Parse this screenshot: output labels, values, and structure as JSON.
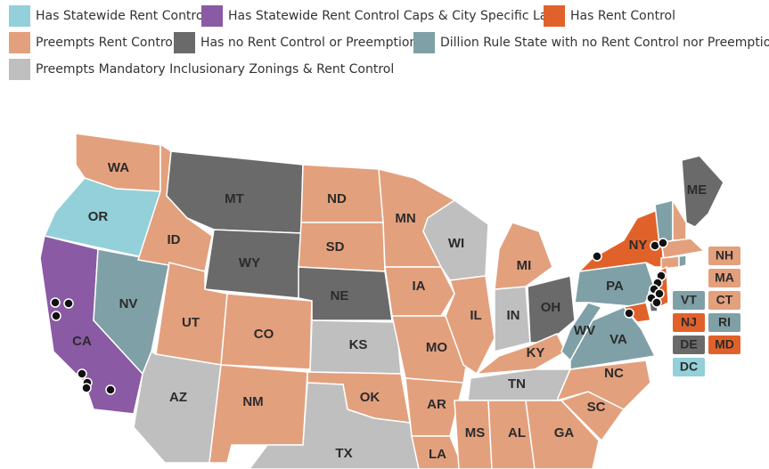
{
  "legend": [
    {
      "label": "Has Statewide Rent Control",
      "color": "#93d0d9"
    },
    {
      "label": "Has Statewide Rent Control Caps & City Specific Laws",
      "color": "#8a5aa5"
    },
    {
      "label": "Has Rent Control",
      "color": "#e0622a"
    },
    {
      "label": "Preempts Rent Control",
      "color": "#e3a07d"
    },
    {
      "label": "Has no Rent Control or Preemptions",
      "color": "#6a6a6a"
    },
    {
      "label": "Dillion Rule State with no Rent Control nor Preemptions",
      "color": "#7fa0a6"
    },
    {
      "label": "Preempts Mandatory Inclusionary Zonings & Rent Control",
      "color": "#bfbfbf"
    }
  ],
  "states": [
    {
      "label": "WA",
      "category": 3
    },
    {
      "label": "OR",
      "category": 0
    },
    {
      "label": "CA",
      "category": 1
    },
    {
      "label": "NV",
      "category": 5
    },
    {
      "label": "ID",
      "category": 3
    },
    {
      "label": "MT",
      "category": 4
    },
    {
      "label": "WY",
      "category": 4
    },
    {
      "label": "UT",
      "category": 3
    },
    {
      "label": "CO",
      "category": 3
    },
    {
      "label": "AZ",
      "category": 6
    },
    {
      "label": "NM",
      "category": 3
    },
    {
      "label": "ND",
      "category": 3
    },
    {
      "label": "SD",
      "category": 3
    },
    {
      "label": "NE",
      "category": 4
    },
    {
      "label": "KS",
      "category": 6
    },
    {
      "label": "OK",
      "category": 3
    },
    {
      "label": "TX",
      "category": 6
    },
    {
      "label": "MN",
      "category": 3
    },
    {
      "label": "IA",
      "category": 3
    },
    {
      "label": "MO",
      "category": 3
    },
    {
      "label": "AR",
      "category": 3
    },
    {
      "label": "LA",
      "category": 3
    },
    {
      "label": "WI",
      "category": 6
    },
    {
      "label": "IL",
      "category": 3
    },
    {
      "label": "IN",
      "category": 6
    },
    {
      "label": "MI",
      "category": 3
    },
    {
      "label": "OH",
      "category": 4
    },
    {
      "label": "KY",
      "category": 3
    },
    {
      "label": "TN",
      "category": 6
    },
    {
      "label": "MS",
      "category": 3
    },
    {
      "label": "AL",
      "category": 3
    },
    {
      "label": "GA",
      "category": 3
    },
    {
      "label": "SC",
      "category": 3
    },
    {
      "label": "NC",
      "category": 3
    },
    {
      "label": "VA",
      "category": 5
    },
    {
      "label": "WV",
      "category": 5
    },
    {
      "label": "PA",
      "category": 5
    },
    {
      "label": "NY",
      "category": 2
    },
    {
      "label": "ME",
      "category": 4
    }
  ],
  "small_states": [
    {
      "label": "NH",
      "category": 3
    },
    {
      "label": "MA",
      "category": 3
    },
    {
      "label": "VT",
      "category": 5
    },
    {
      "label": "CT",
      "category": 3
    },
    {
      "label": "NJ",
      "category": 2
    },
    {
      "label": "RI",
      "category": 5
    },
    {
      "label": "DE",
      "category": 4
    },
    {
      "label": "MD",
      "category": 2
    },
    {
      "label": "DC",
      "category": 0
    }
  ]
}
